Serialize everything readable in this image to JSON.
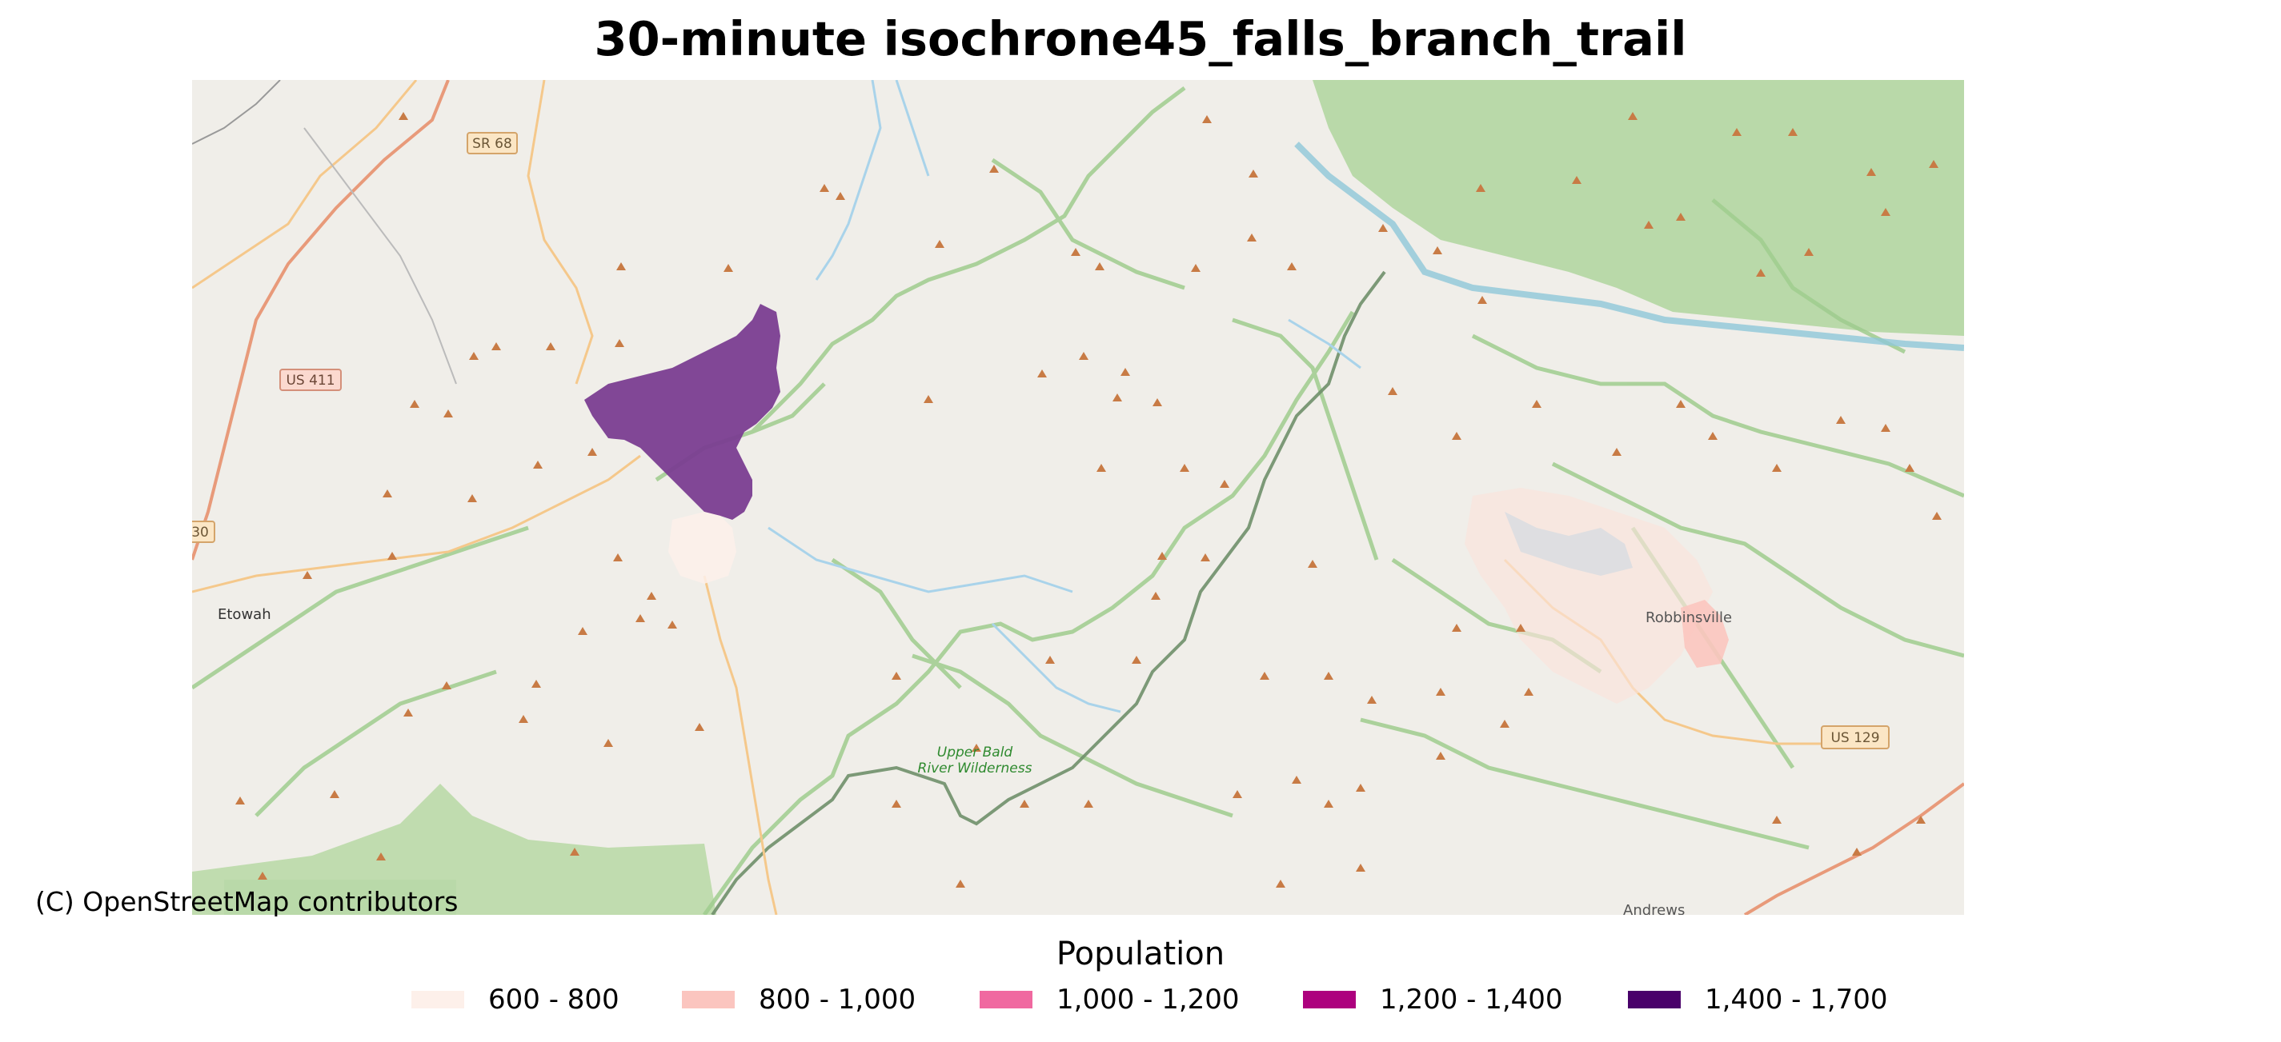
{
  "title": "30-minute isochrone45_falls_branch_trail",
  "attribution": "(C) OpenStreetMap contributors",
  "map": {
    "road_shields": [
      "SR 68",
      "US 411",
      "30",
      "US 129"
    ],
    "place_labels": [
      "Etowah",
      "Robbinsville",
      "Andrews"
    ],
    "area_labels": [
      "Upper Bald",
      "River Wilderness"
    ]
  },
  "legend": {
    "title": "Population",
    "items": [
      {
        "label": "600 - 800",
        "color": "#fdf0ea"
      },
      {
        "label": "800 - 1,000",
        "color": "#fbc5bf"
      },
      {
        "label": "1,000 - 1,200",
        "color": "#f069a0"
      },
      {
        "label": "1,200 - 1,400",
        "color": "#ad017e"
      },
      {
        "label": "1,400 - 1,700",
        "color": "#49006a"
      }
    ]
  },
  "colors": {
    "map_background": "#f0eee9",
    "forest": "#b8d8a8",
    "boundary": "#9cc98a",
    "water": "#a9d3ea",
    "isochrone_highest": "#7a3d91"
  }
}
